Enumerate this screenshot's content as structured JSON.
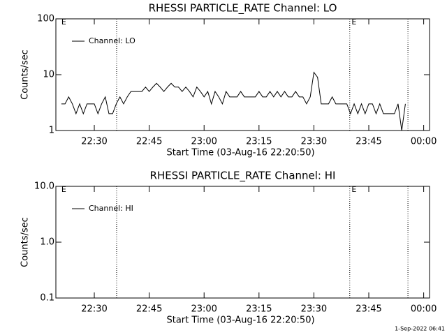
{
  "chart_data": [
    {
      "type": "line",
      "title": "RHESSI PARTICLE_RATE Channel: LO",
      "xlabel": "Start Time (03-Aug-16 22:20:50)",
      "ylabel": "Counts/sec",
      "log_y": true,
      "xlim": [
        1339.5,
        1441.6
      ],
      "ylim": [
        1,
        100
      ],
      "yticks": [
        100,
        10,
        1
      ],
      "xticks": [
        {
          "value": 1350,
          "label": "22:30"
        },
        {
          "value": 1365,
          "label": "22:45"
        },
        {
          "value": 1380,
          "label": "23:00"
        },
        {
          "value": 1395,
          "label": "23:15"
        },
        {
          "value": 1410,
          "label": "23:30"
        },
        {
          "value": 1425,
          "label": "23:45"
        },
        {
          "value": 1440,
          "label": "00:00"
        }
      ],
      "vlines": [
        1356.1,
        1419.8,
        1435.7
      ],
      "annotations": [
        {
          "text": "E",
          "x": 1341
        },
        {
          "text": "E",
          "x": 1420.3
        }
      ],
      "legend": "upper-left",
      "series": [
        {
          "name": "Channel: LO",
          "color": "#000000",
          "x": [
            1341,
            1342,
            1343,
            1344,
            1345,
            1346,
            1347,
            1348,
            1349,
            1350,
            1351,
            1352,
            1353,
            1354,
            1355,
            1356,
            1357,
            1358,
            1359,
            1360,
            1361,
            1362,
            1363,
            1364,
            1365,
            1366,
            1367,
            1368,
            1369,
            1370,
            1371,
            1372,
            1373,
            1374,
            1375,
            1376,
            1377,
            1378,
            1379,
            1380,
            1381,
            1382,
            1383,
            1384,
            1385,
            1386,
            1387,
            1388,
            1389,
            1390,
            1391,
            1392,
            1393,
            1394,
            1395,
            1396,
            1397,
            1398,
            1399,
            1400,
            1401,
            1402,
            1403,
            1404,
            1405,
            1406,
            1407,
            1408,
            1409,
            1410,
            1411,
            1412,
            1413,
            1414,
            1415,
            1416,
            1417,
            1418,
            1419,
            1420,
            1421,
            1422,
            1423,
            1424,
            1425,
            1426,
            1427,
            1428,
            1429,
            1430,
            1431,
            1432,
            1433,
            1434,
            1435
          ],
          "values": [
            3,
            3,
            4,
            3,
            2,
            3,
            2,
            3,
            3,
            3,
            2,
            3,
            4,
            2,
            2,
            3,
            4,
            3,
            4,
            5,
            5,
            5,
            5,
            6,
            5,
            6,
            7,
            6,
            5,
            6,
            7,
            6,
            6,
            5,
            6,
            5,
            4,
            6,
            5,
            4,
            5,
            3,
            5,
            4,
            3,
            5,
            4,
            4,
            4,
            5,
            4,
            4,
            4,
            4,
            5,
            4,
            4,
            5,
            4,
            5,
            4,
            5,
            4,
            4,
            5,
            4,
            4,
            3,
            4,
            11,
            9,
            3,
            3,
            3,
            4,
            3,
            3,
            3,
            3,
            2,
            3,
            2,
            3,
            2,
            3,
            3,
            2,
            3,
            2,
            2,
            2,
            2,
            3,
            1,
            3
          ]
        }
      ]
    },
    {
      "type": "line",
      "title": "RHESSI PARTICLE_RATE Channel: HI",
      "xlabel": "Start Time (03-Aug-16 22:20:50)",
      "ylabel": "Counts/sec",
      "log_y": true,
      "xlim": [
        1339.5,
        1441.6
      ],
      "ylim": [
        0.1,
        10
      ],
      "yticks": [
        {
          "value": 10,
          "label": "10.0"
        },
        {
          "value": 1,
          "label": "1.0"
        },
        0.1
      ],
      "xticks": [
        {
          "value": 1350,
          "label": "22:30"
        },
        {
          "value": 1365,
          "label": "22:45"
        },
        {
          "value": 1380,
          "label": "23:00"
        },
        {
          "value": 1395,
          "label": "23:15"
        },
        {
          "value": 1410,
          "label": "23:30"
        },
        {
          "value": 1425,
          "label": "23:45"
        },
        {
          "value": 1440,
          "label": "00:00"
        }
      ],
      "vlines": [
        1356.1,
        1419.8,
        1435.7
      ],
      "annotations": [
        {
          "text": "E",
          "x": 1341
        },
        {
          "text": "E",
          "x": 1420.3
        }
      ],
      "legend": "upper-left",
      "series": [
        {
          "name": "Channel: HI",
          "color": "#000000",
          "x": [],
          "values": []
        }
      ]
    }
  ],
  "footer": "1-Sep-2022 06:41"
}
